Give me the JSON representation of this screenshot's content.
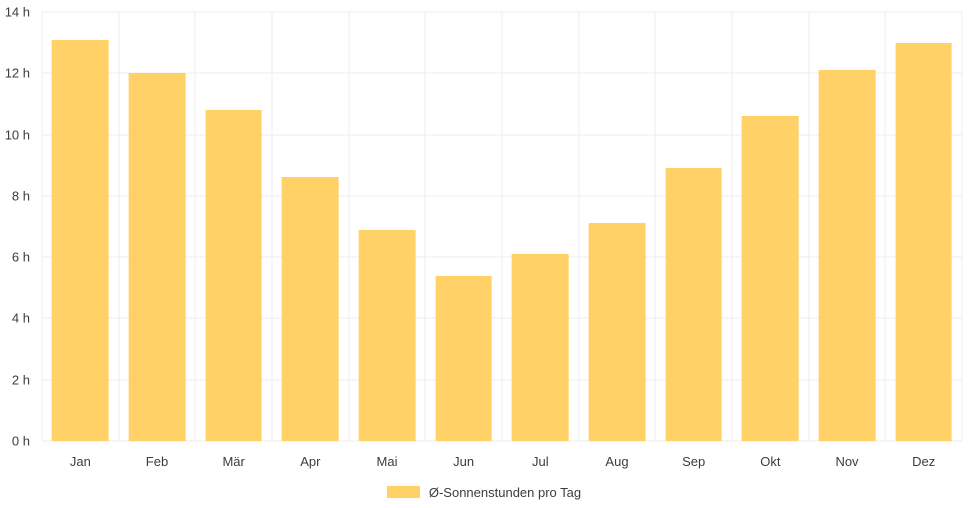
{
  "chart_data": {
    "type": "bar",
    "categories": [
      "Jan",
      "Feb",
      "Mär",
      "Apr",
      "Mai",
      "Jun",
      "Jul",
      "Aug",
      "Sep",
      "Okt",
      "Nov",
      "Dez"
    ],
    "values": [
      13.1,
      12.0,
      10.8,
      8.6,
      6.9,
      5.4,
      6.1,
      7.1,
      8.9,
      10.6,
      12.1,
      13.0
    ],
    "title": "",
    "xlabel": "",
    "ylabel": "",
    "ylim": [
      0,
      14
    ],
    "y_tick_values": [
      0,
      2,
      4,
      6,
      8,
      10,
      12,
      14
    ],
    "y_tick_labels": [
      "0 h",
      "2 h",
      "4 h",
      "6 h",
      "8 h",
      "10 h",
      "12 h",
      "14 h"
    ],
    "legend": "Ø-Sonnenstunden pro Tag",
    "legend_position": "bottom",
    "grid": true,
    "bar_color": "#FFD166",
    "grid_color": "#ececec",
    "text_color": "#3d3d3d",
    "background": "#ffffff"
  }
}
